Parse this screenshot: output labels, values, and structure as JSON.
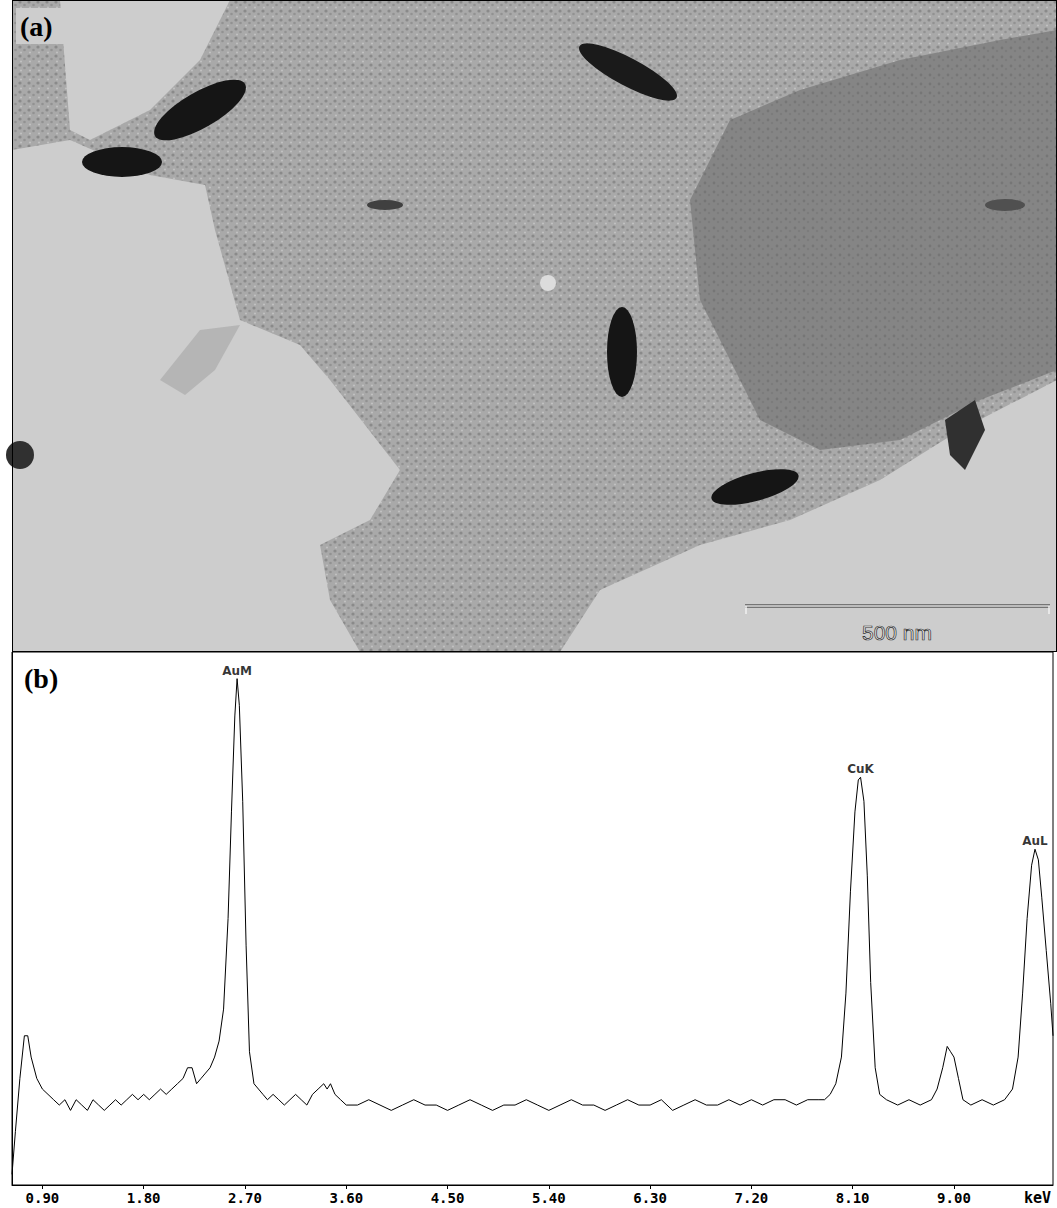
{
  "image_panel": {
    "label": "(a)",
    "scale_bar": "500 nm"
  },
  "chart_data": {
    "type": "line",
    "title": "(b)",
    "xlabel": "keV",
    "x": [
      0.63,
      0.66,
      0.7,
      0.74,
      0.77,
      0.8,
      0.85,
      0.9,
      0.95,
      1.0,
      1.05,
      1.1,
      1.15,
      1.2,
      1.25,
      1.3,
      1.35,
      1.4,
      1.45,
      1.5,
      1.55,
      1.6,
      1.65,
      1.7,
      1.75,
      1.8,
      1.85,
      1.9,
      1.95,
      2.0,
      2.05,
      2.1,
      2.15,
      2.19,
      2.23,
      2.27,
      2.31,
      2.35,
      2.39,
      2.43,
      2.47,
      2.51,
      2.55,
      2.58,
      2.61,
      2.63,
      2.65,
      2.68,
      2.71,
      2.74,
      2.78,
      2.82,
      2.86,
      2.9,
      2.95,
      3.0,
      3.05,
      3.1,
      3.15,
      3.2,
      3.25,
      3.3,
      3.35,
      3.4,
      3.43,
      3.46,
      3.5,
      3.55,
      3.6,
      3.7,
      3.8,
      3.9,
      4.0,
      4.1,
      4.2,
      4.3,
      4.4,
      4.5,
      4.6,
      4.7,
      4.8,
      4.9,
      5.0,
      5.1,
      5.2,
      5.3,
      5.4,
      5.5,
      5.6,
      5.7,
      5.8,
      5.9,
      6.0,
      6.1,
      6.2,
      6.3,
      6.4,
      6.5,
      6.6,
      6.7,
      6.8,
      6.9,
      7.0,
      7.1,
      7.2,
      7.3,
      7.4,
      7.5,
      7.6,
      7.7,
      7.8,
      7.85,
      7.9,
      7.95,
      8.0,
      8.04,
      8.08,
      8.12,
      8.15,
      8.17,
      8.2,
      8.23,
      8.26,
      8.3,
      8.34,
      8.4,
      8.5,
      8.6,
      8.7,
      8.8,
      8.85,
      8.9,
      8.94,
      8.97,
      9.0,
      9.04,
      9.08,
      9.15,
      9.25,
      9.35,
      9.45,
      9.52,
      9.57,
      9.61,
      9.65,
      9.69,
      9.72,
      9.75,
      9.78,
      9.82,
      9.86,
      9.88
    ],
    "values": [
      2,
      10,
      20,
      28,
      28,
      24,
      20,
      18,
      17,
      16,
      15,
      16,
      14,
      16,
      15,
      14,
      16,
      15,
      14,
      15,
      16,
      15,
      16,
      17,
      16,
      17,
      16,
      17,
      18,
      17,
      18,
      19,
      20,
      22,
      22,
      19,
      20,
      21,
      22,
      24,
      27,
      33,
      50,
      70,
      88,
      95,
      90,
      72,
      45,
      25,
      19,
      18,
      17,
      16,
      17,
      16,
      15,
      16,
      17,
      16,
      15,
      17,
      18,
      19,
      18,
      19,
      17,
      16,
      15,
      15,
      16,
      15,
      14,
      15,
      16,
      15,
      15,
      14,
      15,
      16,
      15,
      14,
      15,
      15,
      16,
      15,
      14,
      15,
      16,
      15,
      15,
      14,
      15,
      16,
      15,
      15,
      16,
      14,
      15,
      16,
      15,
      15,
      16,
      15,
      16,
      15,
      16,
      16,
      15,
      16,
      16,
      16,
      17,
      19,
      24,
      36,
      55,
      70,
      76,
      76.5,
      72,
      58,
      38,
      22,
      17,
      16,
      15,
      16,
      15,
      16,
      18,
      22,
      26,
      25,
      24,
      20,
      16,
      15,
      16,
      15,
      16,
      18,
      24,
      36,
      50,
      60,
      63,
      61,
      54,
      44,
      34,
      28
    ],
    "color": "#000000",
    "xlim": [
      0.63,
      9.88
    ],
    "xticks": [
      {
        "value": 0.9,
        "label": "0.90"
      },
      {
        "value": 1.8,
        "label": "1.80"
      },
      {
        "value": 2.7,
        "label": "2.70"
      },
      {
        "value": 3.6,
        "label": "3.60"
      },
      {
        "value": 4.5,
        "label": "4.50"
      },
      {
        "value": 5.4,
        "label": "5.40"
      },
      {
        "value": 6.3,
        "label": "6.30"
      },
      {
        "value": 7.2,
        "label": "7.20"
      },
      {
        "value": 8.1,
        "label": "8.10"
      },
      {
        "value": 9.0,
        "label": "9.00"
      }
    ],
    "ylim": [
      0,
      100
    ],
    "grid": false,
    "tick_labels": "x",
    "annotations": [
      {
        "text": "AuM",
        "x": 2.63,
        "y": 95
      },
      {
        "text": "CuK",
        "x": 8.17,
        "y": 76.5
      },
      {
        "text": "AuL",
        "x": 9.72,
        "y": 63
      }
    ]
  }
}
